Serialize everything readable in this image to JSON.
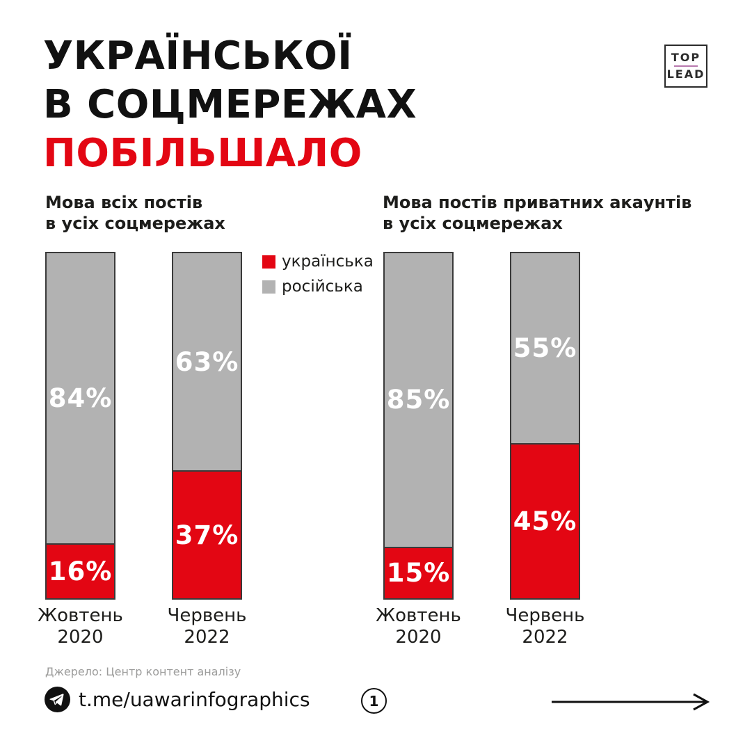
{
  "title": {
    "lines": [
      "УКРАЇНСЬКОЇ",
      "В СОЦМЕРЕЖАХ",
      "ПОБІЛЬШАЛО"
    ],
    "accent_line_index": 2,
    "accent_color": "#e30613",
    "text_color": "#111111"
  },
  "logo": {
    "top": "TOP",
    "bottom": "LEAD",
    "divider_color": "#b878ae"
  },
  "legend": [
    {
      "label": "українська",
      "color": "#e30613"
    },
    {
      "label": "російська",
      "color": "#b2b2b2"
    }
  ],
  "chart_data": [
    {
      "type": "bar",
      "stacked": true,
      "unit": "%",
      "title": "Мова всіх постів\nв усіх соцмережах",
      "categories": [
        "Жовтень 2020",
        "Червень 2022"
      ],
      "series": [
        {
          "name": "російська",
          "position": "top",
          "color": "#b2b2b2",
          "values": [
            84,
            63
          ]
        },
        {
          "name": "українська",
          "position": "bottom",
          "color": "#e30613",
          "values": [
            16,
            37
          ]
        }
      ],
      "ylim": [
        0,
        100
      ],
      "legend_position": "top-right-of-chart",
      "grid": false
    },
    {
      "type": "bar",
      "stacked": true,
      "unit": "%",
      "title": "Мова постів приватних акаунтів\nв усіх соцмережах",
      "categories": [
        "Жовтень 2020",
        "Червень 2022"
      ],
      "series": [
        {
          "name": "російська",
          "position": "top",
          "color": "#b2b2b2",
          "values": [
            85,
            55
          ]
        },
        {
          "name": "українська",
          "position": "bottom",
          "color": "#e30613",
          "values": [
            15,
            45
          ]
        }
      ],
      "ylim": [
        0,
        100
      ],
      "grid": false
    }
  ],
  "source": "Джерело: Центр контент аналізу",
  "footer": {
    "telegram_link": "t.me/uawarinfographics",
    "page_number": "1"
  },
  "colors": {
    "ukrainian_red": "#e30613",
    "russian_gray": "#b2b2b2",
    "text_dark": "#1d1d1b",
    "source_gray": "#9c9c9b",
    "bar_border": "#3a3a3a"
  }
}
